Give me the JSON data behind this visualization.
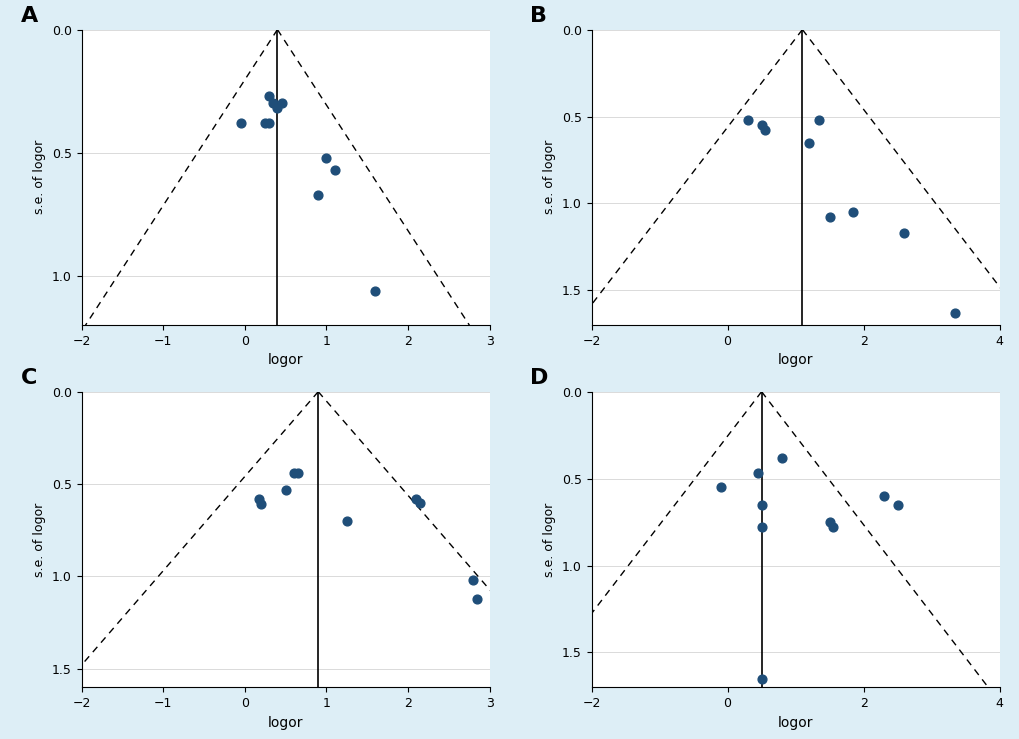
{
  "background_color": "#ddeef6",
  "plot_bg_color": "#ffffff",
  "dot_color": "#1f4e79",
  "panels": [
    {
      "label": "A",
      "xlim": [
        -2,
        3
      ],
      "ylim": [
        1.2,
        0
      ],
      "xticks": [
        -2,
        -1,
        0,
        1,
        2,
        3
      ],
      "yticks": [
        0,
        0.5,
        1.0
      ],
      "xlabel": "logor",
      "ylabel": "s.e. of logor",
      "vline_x": 0.4,
      "funnel_slope": 1.96,
      "points_x": [
        0.3,
        0.35,
        0.4,
        0.45,
        0.3,
        -0.05,
        0.25,
        1.0,
        1.1,
        0.9,
        1.6
      ],
      "points_y": [
        0.27,
        0.3,
        0.32,
        0.3,
        0.38,
        0.38,
        0.38,
        0.52,
        0.57,
        0.67,
        1.06
      ]
    },
    {
      "label": "B",
      "xlim": [
        -2,
        4
      ],
      "ylim": [
        1.7,
        0
      ],
      "xticks": [
        -2,
        0,
        2,
        4
      ],
      "yticks": [
        0,
        0.5,
        1.0,
        1.5
      ],
      "xlabel": "logor",
      "ylabel": "s.e. of logor",
      "vline_x": 1.1,
      "funnel_slope": 1.96,
      "points_x": [
        0.3,
        0.5,
        0.55,
        1.2,
        1.35,
        1.85,
        1.5,
        2.6,
        3.35
      ],
      "points_y": [
        0.52,
        0.55,
        0.58,
        0.65,
        0.52,
        1.05,
        1.08,
        1.17,
        1.63
      ]
    },
    {
      "label": "C",
      "xlim": [
        -2,
        3
      ],
      "ylim": [
        1.6,
        0
      ],
      "xticks": [
        -2,
        -1,
        0,
        1,
        2,
        3
      ],
      "yticks": [
        0,
        0.5,
        1.0,
        1.5
      ],
      "xlabel": "logor",
      "ylabel": "s.e. of logor",
      "vline_x": 0.9,
      "funnel_slope": 1.96,
      "points_x": [
        0.17,
        0.2,
        0.5,
        0.6,
        0.65,
        1.25,
        2.1,
        2.15,
        2.8,
        2.85
      ],
      "points_y": [
        0.58,
        0.61,
        0.53,
        0.44,
        0.44,
        0.7,
        0.58,
        0.6,
        1.02,
        1.12
      ]
    },
    {
      "label": "D",
      "xlim": [
        -2,
        4
      ],
      "ylim": [
        1.7,
        0
      ],
      "xticks": [
        -2,
        0,
        2,
        4
      ],
      "yticks": [
        0,
        0.5,
        1.0,
        1.5
      ],
      "xlabel": "logor",
      "ylabel": "s.e. of logor",
      "vline_x": 0.5,
      "funnel_slope": 1.96,
      "points_x": [
        -0.1,
        0.45,
        0.5,
        0.5,
        0.8,
        1.5,
        1.55,
        2.3,
        2.5,
        0.5
      ],
      "points_y": [
        0.55,
        0.47,
        0.65,
        0.78,
        0.38,
        0.75,
        0.78,
        0.6,
        0.65,
        1.65
      ]
    }
  ]
}
